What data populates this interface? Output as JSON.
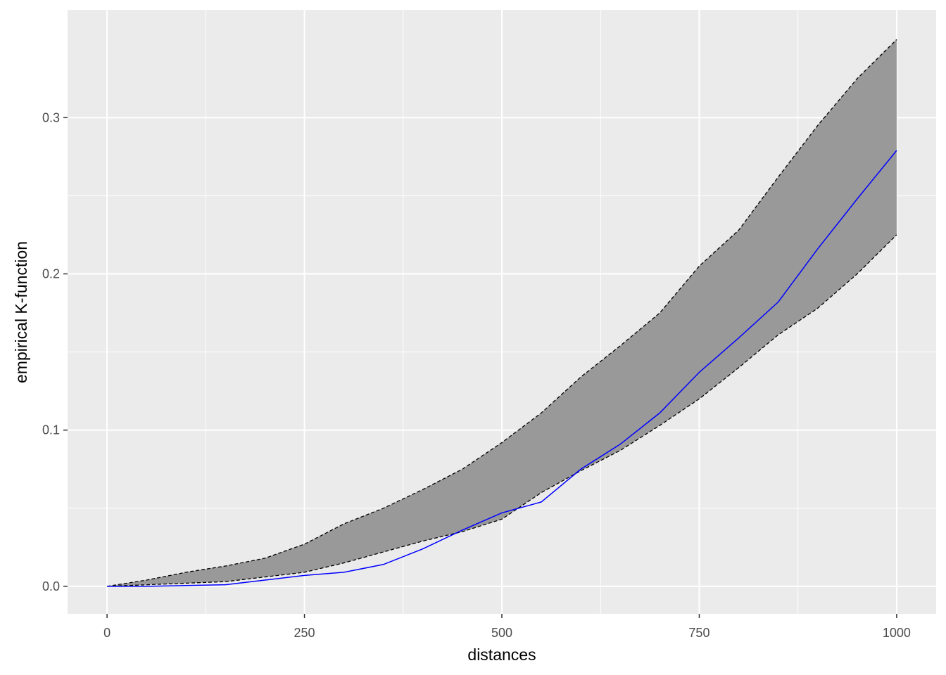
{
  "chart_data": {
    "type": "line",
    "x_label": "distances",
    "y_label": "empirical K-function",
    "x": [
      0,
      50,
      100,
      150,
      200,
      250,
      300,
      350,
      400,
      450,
      500,
      550,
      600,
      650,
      700,
      750,
      800,
      850,
      900,
      950,
      1000
    ],
    "ribbon": {
      "color": "#999999",
      "border_color": "#000000",
      "upper": [
        0,
        0.004,
        0.009,
        0.013,
        0.018,
        0.027,
        0.04,
        0.05,
        0.062,
        0.075,
        0.092,
        0.111,
        0.134,
        0.154,
        0.175,
        0.205,
        0.228,
        0.262,
        0.295,
        0.325,
        0.35
      ],
      "lower": [
        0,
        0.001,
        0.002,
        0.003,
        0.006,
        0.009,
        0.015,
        0.022,
        0.029,
        0.035,
        0.043,
        0.06,
        0.074,
        0.087,
        0.103,
        0.12,
        0.14,
        0.161,
        0.178,
        0.2,
        0.225
      ]
    },
    "line": {
      "color": "#0000ff",
      "values": [
        0,
        0,
        0.0005,
        0.001,
        0.004,
        0.007,
        0.009,
        0.014,
        0.024,
        0.036,
        0.047,
        0.054,
        0.075,
        0.091,
        0.111,
        0.137,
        0.159,
        0.182,
        0.216,
        0.248,
        0.279
      ]
    },
    "xlim": [
      -50,
      1050
    ],
    "ylim": [
      -0.0176,
      0.369
    ],
    "xticks": [
      0,
      250,
      500,
      750,
      1000
    ],
    "yticks": [
      {
        "value": 0,
        "label": "0.0"
      },
      0.1,
      0.2,
      0.3
    ],
    "minor_xgrid": [
      125,
      375,
      625,
      875
    ],
    "minor_ygrid": [
      0.05,
      0.15,
      0.25
    ],
    "grid": true
  }
}
